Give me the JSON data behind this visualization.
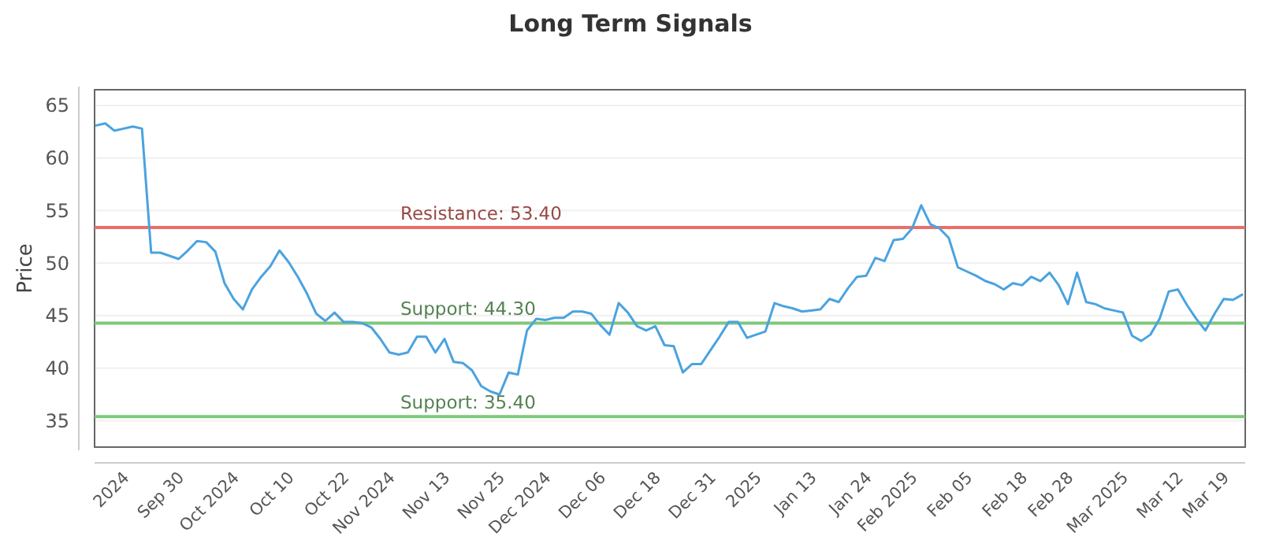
{
  "chart_data": {
    "type": "line",
    "title": "Long Term Signals",
    "ylabel": "Price",
    "categories": [
      null,
      null,
      null,
      "2024",
      null,
      null,
      null,
      null,
      null,
      "Sep 30",
      null,
      null,
      null,
      null,
      null,
      "Oct 2024",
      null,
      null,
      null,
      null,
      null,
      "Oct 10",
      null,
      null,
      null,
      null,
      null,
      "Oct 22",
      null,
      null,
      null,
      null,
      "Nov 2024",
      null,
      null,
      null,
      null,
      null,
      "Nov 13",
      null,
      null,
      null,
      null,
      null,
      "Nov 25",
      null,
      null,
      null,
      null,
      "Dec 2024",
      null,
      null,
      null,
      null,
      null,
      "Dec 06",
      null,
      null,
      null,
      null,
      null,
      "Dec 18",
      null,
      null,
      null,
      null,
      null,
      "Dec 31",
      null,
      null,
      null,
      null,
      "2025",
      null,
      null,
      null,
      null,
      null,
      "Jan 13",
      null,
      null,
      null,
      null,
      null,
      "Jan 24",
      null,
      null,
      null,
      null,
      "Feb 2025",
      null,
      null,
      null,
      null,
      null,
      "Feb 05",
      null,
      null,
      null,
      null,
      null,
      "Feb 18",
      null,
      null,
      null,
      null,
      "Feb 28",
      null,
      null,
      null,
      null,
      null,
      "Mar 2025",
      null,
      null,
      null,
      null,
      null,
      "Mar 12",
      null,
      null,
      null,
      null,
      "Mar 19",
      null,
      null
    ],
    "series": [
      {
        "color": "#4aa3df",
        "values": [
          63.1,
          63.3,
          62.6,
          62.8,
          63.0,
          62.8,
          51.0,
          51.0,
          50.7,
          50.4,
          51.2,
          52.1,
          52.0,
          51.1,
          48.1,
          46.6,
          45.6,
          47.5,
          48.7,
          49.7,
          51.2,
          50.1,
          48.7,
          47.1,
          45.2,
          44.5,
          45.3,
          44.4,
          44.4,
          44.3,
          43.9,
          42.8,
          41.5,
          41.3,
          41.5,
          43.0,
          43.0,
          41.5,
          42.8,
          40.6,
          40.5,
          39.8,
          38.3,
          37.8,
          37.5,
          39.6,
          39.4,
          43.6,
          44.7,
          44.6,
          44.8,
          44.8,
          45.4,
          45.4,
          45.2,
          44.1,
          43.2,
          46.2,
          45.3,
          44.0,
          43.6,
          44.0,
          42.2,
          42.1,
          39.6,
          40.4,
          40.4,
          41.7,
          43.0,
          44.4,
          44.4,
          42.9,
          43.2,
          43.5,
          46.2,
          45.9,
          45.7,
          45.4,
          45.5,
          45.6,
          46.6,
          46.3,
          47.6,
          48.7,
          48.8,
          50.5,
          50.2,
          52.2,
          52.3,
          53.3,
          55.5,
          53.7,
          53.3,
          52.4,
          49.6,
          49.2,
          48.8,
          48.3,
          48.0,
          47.5,
          48.1,
          47.9,
          48.7,
          48.3,
          49.1,
          47.9,
          46.1,
          49.1,
          46.3,
          46.1,
          45.7,
          45.5,
          45.3,
          43.1,
          42.6,
          43.2,
          44.7,
          47.3,
          47.5,
          46.0,
          44.7,
          43.6,
          45.2,
          46.6,
          46.5,
          47.0
        ]
      }
    ],
    "ylim": [
      32.5,
      66.5
    ],
    "yticks": [
      35,
      40,
      45,
      50,
      55,
      60,
      65
    ],
    "grid": "y",
    "marker": "none",
    "line_style": "solid",
    "ref_lines": [
      {
        "axis": "y",
        "value": 53.4,
        "label": "Resistance: 53.40",
        "color": "#e8706a"
      },
      {
        "axis": "y",
        "value": 44.3,
        "label": "Support: 44.30",
        "color": "#7fc77b"
      },
      {
        "axis": "y",
        "value": 35.4,
        "label": "Support: 35.40",
        "color": "#7fc77b"
      }
    ]
  }
}
